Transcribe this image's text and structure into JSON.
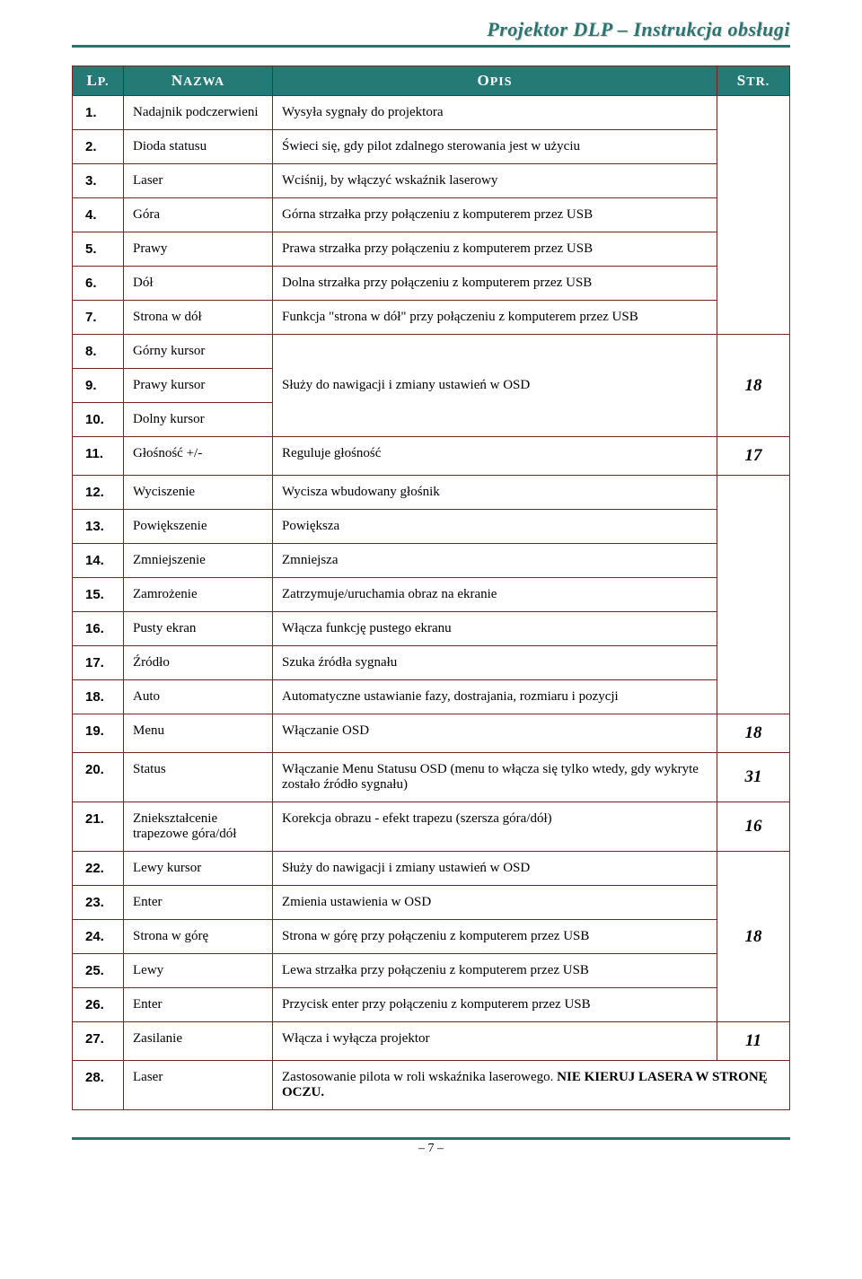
{
  "header": "Projektor DLP – Instrukcja obsługi",
  "columns": {
    "lp_first": "L",
    "lp_rest": "P.",
    "name_first": "N",
    "name_rest": "AZWA",
    "desc_first": "O",
    "desc_rest": "PIS",
    "str_first": "S",
    "str_rest": "TR."
  },
  "colors": {
    "header_bg": "#267a75",
    "border": "#7a2420",
    "header_text": "#2b7571"
  },
  "rows": {
    "r1": {
      "lp": "1.",
      "name": "Nadajnik podczerwieni",
      "desc": "Wysyła sygnały do projektora"
    },
    "r2": {
      "lp": "2.",
      "name": "Dioda statusu",
      "desc": "Świeci się, gdy pilot zdalnego sterowania jest w użyciu"
    },
    "r3": {
      "lp": "3.",
      "name": "Laser",
      "desc": "Wciśnij, by włączyć wskaźnik laserowy"
    },
    "r4": {
      "lp": "4.",
      "name": "Góra",
      "desc": "Górna strzałka przy połączeniu z komputerem przez USB"
    },
    "r5": {
      "lp": "5.",
      "name": "Prawy",
      "desc": "Prawa strzałka przy połączeniu z komputerem przez USB"
    },
    "r6": {
      "lp": "6.",
      "name": "Dół",
      "desc": "Dolna strzałka przy połączeniu z komputerem przez USB"
    },
    "r7": {
      "lp": "7.",
      "name": "Strona w dół",
      "desc": "Funkcja \"strona w dół\" przy połączeniu z komputerem przez USB"
    },
    "r8": {
      "lp": "8.",
      "name": "Górny kursor"
    },
    "r9": {
      "lp": "9.",
      "name": "Prawy kursor",
      "desc": "Służy do nawigacji i zmiany ustawień w OSD",
      "str": "18"
    },
    "r10": {
      "lp": "10.",
      "name": "Dolny kursor"
    },
    "r11": {
      "lp": "11.",
      "name": "Głośność +/-",
      "desc": "Reguluje głośność",
      "str": "17"
    },
    "r12": {
      "lp": "12.",
      "name": "Wyciszenie",
      "desc": "Wycisza wbudowany głośnik"
    },
    "r13": {
      "lp": "13.",
      "name": "Powiększenie",
      "desc": "Powiększa"
    },
    "r14": {
      "lp": "14.",
      "name": "Zmniejszenie",
      "desc": "Zmniejsza"
    },
    "r15": {
      "lp": "15.",
      "name": "Zamrożenie",
      "desc": "Zatrzymuje/uruchamia obraz na ekranie"
    },
    "r16": {
      "lp": "16.",
      "name": "Pusty ekran",
      "desc": "Włącza funkcję pustego ekranu"
    },
    "r17": {
      "lp": "17.",
      "name": "Źródło",
      "desc": "Szuka źródła sygnału"
    },
    "r18": {
      "lp": "18.",
      "name": "Auto",
      "desc": "Automatyczne ustawianie fazy, dostrajania, rozmiaru i pozycji"
    },
    "r19": {
      "lp": "19.",
      "name": "Menu",
      "desc": "Włączanie OSD",
      "str": "18"
    },
    "r20": {
      "lp": "20.",
      "name": "Status",
      "desc": "Włączanie Menu Statusu OSD (menu to włącza się tylko wtedy, gdy wykryte zostało źródło sygnału)",
      "str": "31"
    },
    "r21": {
      "lp": "21.",
      "name": "Zniekształcenie trapezowe góra/dół",
      "desc": "Korekcja obrazu - efekt trapezu (szersza góra/dół)",
      "str": "16"
    },
    "r22": {
      "lp": "22.",
      "name": "Lewy kursor",
      "desc": "Służy do nawigacji i zmiany ustawień w OSD"
    },
    "r23": {
      "lp": "23.",
      "name": "Enter",
      "desc": "Zmienia ustawienia w OSD"
    },
    "r24": {
      "lp": "24.",
      "name": "Strona w górę",
      "desc": "Strona w górę przy połączeniu z komputerem przez USB",
      "str": "18"
    },
    "r25": {
      "lp": "25.",
      "name": "Lewy",
      "desc": "Lewa strzałka przy połączeniu z komputerem przez USB"
    },
    "r26": {
      "lp": "26.",
      "name": "Enter",
      "desc": "Przycisk enter przy połączeniu z komputerem przez USB"
    },
    "r27": {
      "lp": "27.",
      "name": "Zasilanie",
      "desc": "Włącza i wyłącza projektor",
      "str": "11"
    },
    "r28": {
      "lp": "28.",
      "name": "Laser",
      "desc_pre": "Zastosowanie pilota w roli wskaźnika laserowego. ",
      "desc_bold": "NIE KIERUJ LASERA W STRONĘ OCZU."
    }
  },
  "footer": "– 7 –"
}
